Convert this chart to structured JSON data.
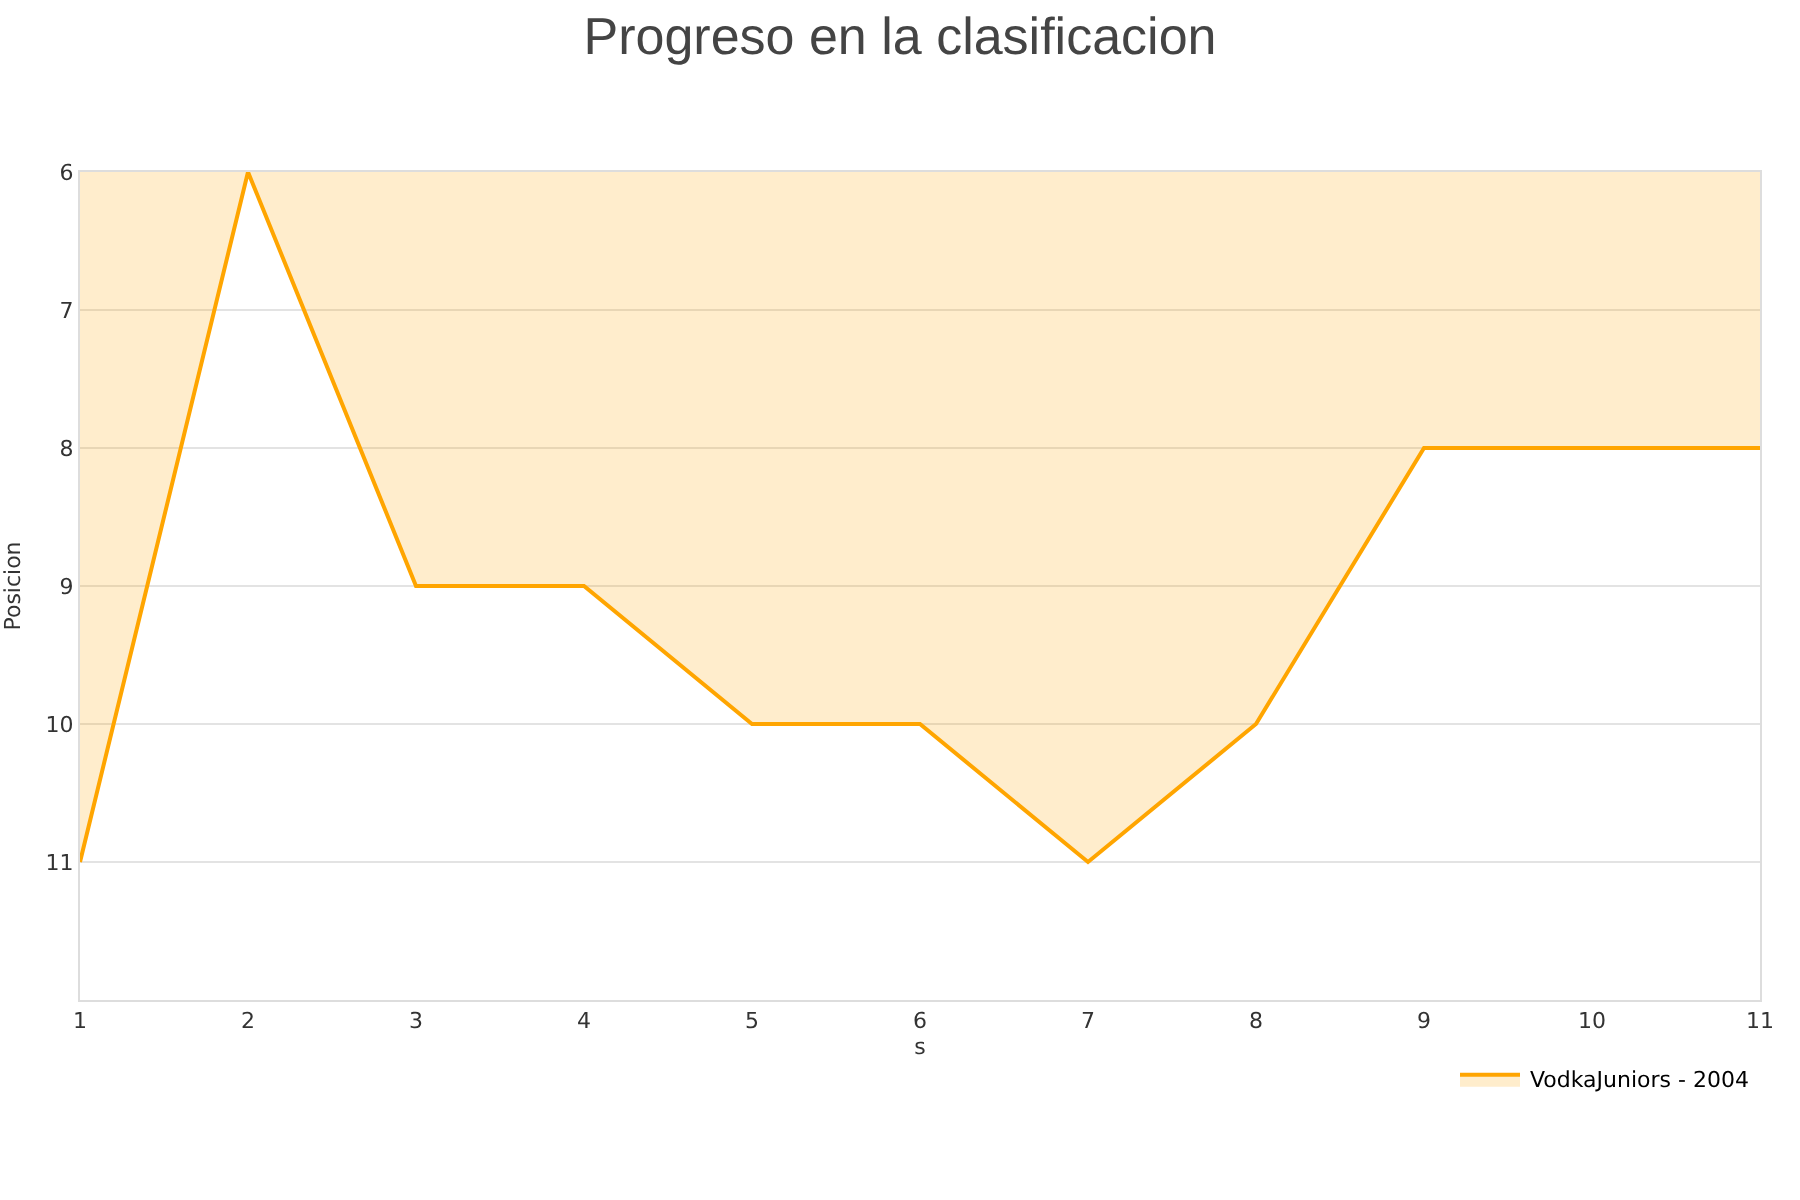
{
  "chart_data": {
    "type": "area",
    "title": "Progreso en la clasificacion",
    "xlabel": "s",
    "ylabel": "Posicion",
    "x": [
      1,
      2,
      3,
      4,
      5,
      6,
      7,
      8,
      9,
      10,
      11
    ],
    "series": [
      {
        "name": "VodkaJuniors - 2004",
        "color": "#ffa500",
        "values": [
          11,
          6,
          9,
          9,
          10,
          10,
          11,
          10,
          8,
          8,
          8
        ]
      }
    ],
    "xlim": [
      1,
      11
    ],
    "xticks": [
      1,
      2,
      3,
      4,
      5,
      6,
      7,
      8,
      9,
      10,
      11
    ],
    "ylim": [
      12,
      6
    ],
    "yticks": [
      6,
      7,
      8,
      9,
      10,
      11
    ],
    "grid": "y",
    "legend": "bottom right"
  }
}
